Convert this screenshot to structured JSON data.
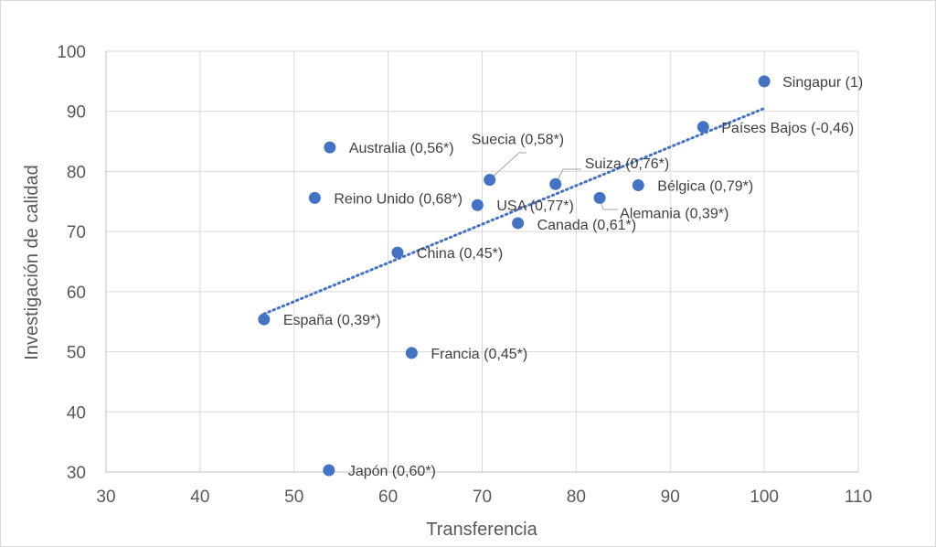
{
  "chart_data": {
    "type": "scatter",
    "title": "",
    "xlabel": "Transferencia",
    "ylabel": "Investigación de calidad",
    "xlim": [
      30,
      110
    ],
    "ylim": [
      30,
      100
    ],
    "xticks": [
      30,
      40,
      50,
      60,
      70,
      80,
      90,
      100,
      110
    ],
    "yticks": [
      30,
      40,
      50,
      60,
      70,
      80,
      90,
      100
    ],
    "grid": true,
    "legend": "none",
    "marker_color": "#4472c4",
    "trendline": {
      "style": "dotted",
      "color": "#4472c4",
      "x": [
        46.8,
        100
      ],
      "y": [
        56.3,
        90.5
      ]
    },
    "points": [
      {
        "label": "Singapur (1)",
        "x": 100,
        "y": 95
      },
      {
        "label": "Países Bajos (-0,46)",
        "x": 93.5,
        "y": 87.4
      },
      {
        "label": "Australia (0,56*)",
        "x": 53.8,
        "y": 84
      },
      {
        "label": "Suecia (0,58*)",
        "x": 70.8,
        "y": 78.6
      },
      {
        "label": "Suiza (0,76*)",
        "x": 77.8,
        "y": 77.9
      },
      {
        "label": "Bélgica (0,79*)",
        "x": 86.6,
        "y": 77.7
      },
      {
        "label": "Alemania (0,39*)",
        "x": 82.5,
        "y": 75.6
      },
      {
        "label": "Reino Unido (0,68*)",
        "x": 52.2,
        "y": 75.6
      },
      {
        "label": "USA (0,77*)",
        "x": 69.5,
        "y": 74.4
      },
      {
        "label": "Canada (0,61*)",
        "x": 73.8,
        "y": 71.4
      },
      {
        "label": "China (0,45*)",
        "x": 61,
        "y": 66.5
      },
      {
        "label": "España (0,39*)",
        "x": 46.8,
        "y": 55.4
      },
      {
        "label": "Francia (0,45*)",
        "x": 62.5,
        "y": 49.8
      },
      {
        "label": "Japón (0,60*)",
        "x": 53.7,
        "y": 30.3
      }
    ]
  }
}
